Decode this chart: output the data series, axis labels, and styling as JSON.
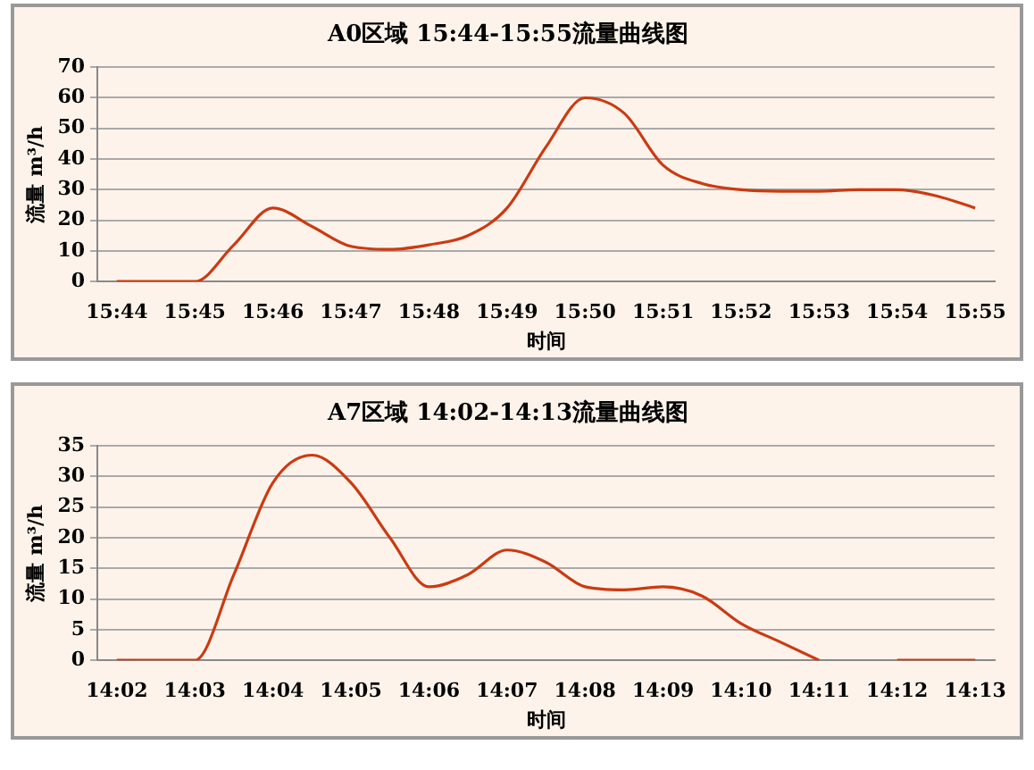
{
  "chart_data": [
    {
      "type": "line",
      "title": "A0区域 15:44-15:55流量曲线图",
      "xlabel": "时间",
      "ylabel": "流量 m³/h",
      "categories": [
        "15:44",
        null,
        "15:45",
        null,
        "15:46",
        null,
        "15:47",
        null,
        "15:48",
        null,
        "15:49",
        null,
        "15:50",
        null,
        "15:51",
        null,
        "15:52",
        null,
        "15:53",
        null,
        "15:54",
        null,
        "15:55"
      ],
      "series": [
        {
          "color": "#cc3a12",
          "values": [
            0,
            0,
            0,
            12,
            24,
            18,
            11.5,
            10.5,
            12,
            15,
            24,
            44,
            60,
            55,
            38,
            32,
            30,
            29.5,
            29.5,
            30,
            30,
            28,
            24
          ]
        }
      ],
      "ylim": [
        0,
        70
      ],
      "yticks": [
        0,
        10,
        20,
        30,
        40,
        50,
        60,
        70
      ],
      "grid": "y",
      "legend": false,
      "marker": "none",
      "line_style": "solid"
    },
    {
      "type": "line",
      "title": "A7区域 14:02-14:13流量曲线图",
      "xlabel": "时间",
      "ylabel": "流量 m³/h",
      "categories": [
        "14:02",
        null,
        "14:03",
        null,
        "14:04",
        null,
        "14:05",
        null,
        "14:06",
        null,
        "14:07",
        null,
        "14:08",
        null,
        "14:09",
        null,
        "14:10",
        null,
        "14:11",
        null,
        "14:12",
        null,
        "14:13"
      ],
      "series": [
        {
          "color": "#cc3a12",
          "values": [
            0,
            0,
            0,
            14,
            29,
            33.5,
            29,
            20,
            12,
            14,
            18,
            16,
            12,
            11.5,
            12,
            10.5,
            6,
            3,
            0,
            null,
            0,
            0,
            0
          ]
        }
      ],
      "ylim": [
        0,
        35
      ],
      "yticks": [
        0,
        5,
        10,
        15,
        20,
        25,
        30,
        35
      ],
      "grid": "y",
      "legend": false,
      "marker": "none",
      "line_style": "solid"
    }
  ]
}
